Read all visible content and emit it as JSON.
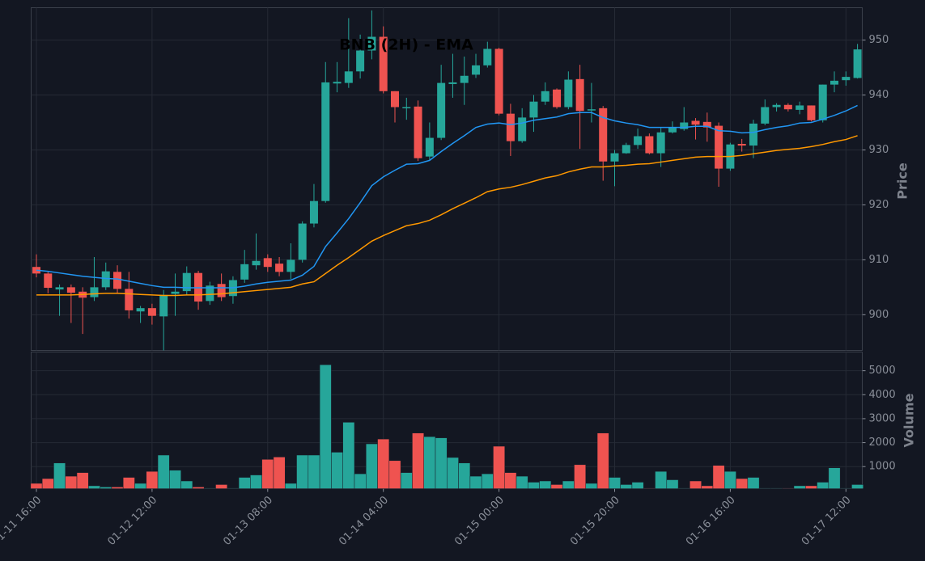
{
  "chart_data": {
    "type": "candlestick",
    "title": "BNB (2H) - EMA",
    "ylabel": "Price",
    "volume_label": "Volume",
    "up_color": "#26a69a",
    "down_color": "#ef5350",
    "grid": true,
    "categories": [
      "01-11 16:00",
      null,
      null,
      null,
      null,
      null,
      null,
      null,
      null,
      null,
      "01-12 12:00",
      null,
      null,
      null,
      null,
      null,
      null,
      null,
      null,
      null,
      "01-13 08:00",
      null,
      null,
      null,
      null,
      null,
      null,
      null,
      null,
      null,
      "01-14 04:00",
      null,
      null,
      null,
      null,
      null,
      null,
      null,
      null,
      null,
      "01-15 00:00",
      null,
      null,
      null,
      null,
      null,
      null,
      null,
      null,
      null,
      "01-15 20:00",
      null,
      null,
      null,
      null,
      null,
      null,
      null,
      null,
      null,
      "01-16 16:00",
      null,
      null,
      null,
      null,
      null,
      null,
      null,
      null,
      null,
      "01-17 12:00",
      null
    ],
    "open": [
      908.7,
      907.5,
      904.6,
      905.0,
      904.2,
      903.2,
      905.0,
      907.8,
      904.7,
      900.6,
      901.2,
      899.7,
      903.8,
      904.3,
      907.6,
      902.5,
      905.6,
      903.4,
      906.4,
      909.0,
      910.3,
      909.3,
      907.8,
      910.0,
      916.6,
      920.7,
      942.1,
      942.2,
      944.3,
      948.1,
      950.6,
      940.7,
      937.6,
      937.9,
      928.8,
      932.2,
      942.0,
      942.2,
      943.7,
      945.4,
      948.4,
      936.6,
      931.6,
      935.9,
      938.8,
      941.0,
      937.8,
      942.9,
      937.2,
      937.6,
      927.9,
      929.4,
      930.9,
      932.5,
      929.4,
      933.2,
      933.8,
      935.3,
      935.1,
      934.4,
      926.6,
      931.1,
      930.8,
      934.8,
      937.8,
      938.2,
      937.3,
      938.1,
      935.4,
      941.9,
      942.7,
      943.1
    ],
    "high": [
      911.0,
      907.8,
      905.5,
      905.5,
      905.0,
      910.5,
      909.5,
      909.0,
      907.8,
      901.6,
      902.0,
      904.5,
      907.5,
      908.8,
      908.0,
      906.0,
      907.5,
      907.0,
      911.8,
      914.8,
      911.0,
      910.5,
      913.0,
      917.0,
      923.8,
      946.0,
      946.0,
      954.0,
      951.0,
      955.4,
      952.5,
      940.7,
      939.5,
      939.0,
      935.0,
      945.5,
      947.5,
      947.0,
      947.5,
      949.7,
      948.6,
      938.4,
      937.6,
      940.0,
      942.3,
      941.2,
      944.3,
      945.5,
      942.2,
      938.0,
      930.0,
      931.3,
      933.9,
      933.0,
      934.0,
      935.2,
      937.8,
      935.8,
      936.8,
      935.0,
      931.3,
      932.0,
      935.5,
      939.2,
      938.5,
      938.5,
      938.8,
      938.1,
      941.9,
      944.3,
      944.3,
      949.3
    ],
    "low": [
      906.8,
      903.9,
      899.8,
      898.5,
      896.5,
      902.5,
      904.5,
      903.9,
      899.3,
      898.5,
      898.2,
      893.5,
      899.8,
      903.6,
      900.9,
      901.8,
      902.5,
      902.0,
      905.8,
      908.2,
      907.8,
      907.0,
      906.5,
      909.5,
      915.9,
      920.4,
      940.5,
      941.3,
      943.0,
      946.5,
      940.3,
      935.0,
      935.5,
      928.0,
      928.2,
      931.8,
      939.5,
      938.2,
      943.1,
      945.0,
      936.3,
      928.9,
      931.3,
      933.3,
      938.2,
      937.5,
      937.4,
      930.2,
      935.0,
      924.4,
      923.4,
      929.3,
      930.2,
      929.2,
      926.9,
      933.0,
      933.5,
      931.9,
      931.5,
      923.3,
      926.2,
      929.7,
      928.5,
      934.5,
      937.0,
      937.0,
      936.5,
      935.2,
      935.0,
      940.5,
      941.7,
      943.0
    ],
    "close": [
      907.5,
      904.9,
      905.0,
      904.0,
      903.1,
      905.0,
      907.9,
      904.7,
      900.8,
      901.2,
      899.8,
      903.6,
      904.2,
      907.6,
      902.4,
      905.3,
      903.2,
      906.3,
      909.2,
      909.8,
      908.7,
      907.8,
      910.0,
      916.6,
      920.7,
      942.3,
      942.4,
      944.3,
      948.1,
      950.6,
      940.7,
      937.8,
      937.8,
      928.5,
      932.2,
      942.2,
      942.3,
      943.5,
      945.4,
      948.4,
      936.6,
      931.6,
      935.9,
      938.8,
      940.7,
      937.8,
      942.8,
      937.1,
      937.4,
      927.9,
      929.4,
      930.9,
      932.5,
      929.4,
      933.2,
      934.1,
      935.0,
      934.6,
      934.1,
      926.6,
      931.0,
      930.8,
      934.8,
      937.8,
      938.2,
      937.4,
      938.1,
      935.4,
      941.9,
      942.6,
      943.3,
      948.3
    ],
    "volume": [
      300,
      500,
      1150,
      600,
      750,
      200,
      150,
      150,
      550,
      300,
      800,
      1480,
      850,
      400,
      150,
      100,
      250,
      100,
      550,
      650,
      1300,
      1400,
      300,
      1480,
      1480,
      5250,
      1600,
      2850,
      700,
      1950,
      2150,
      1250,
      750,
      2400,
      2250,
      2200,
      1380,
      1150,
      600,
      700,
      1850,
      750,
      600,
      350,
      400,
      250,
      400,
      1080,
      300,
      2400,
      550,
      250,
      350,
      100,
      800,
      450,
      100,
      400,
      200,
      1050,
      800,
      500,
      550,
      100,
      100,
      100,
      200,
      200,
      350,
      950,
      100,
      250
    ],
    "ema_lines": [
      {
        "color": "#2196f3",
        "values": [
          908.1,
          907.9,
          907.6,
          907.3,
          907.0,
          906.8,
          906.6,
          906.5,
          906.1,
          905.7,
          905.3,
          905.0,
          905.0,
          904.9,
          904.9,
          904.9,
          904.9,
          904.9,
          905.2,
          905.6,
          905.9,
          906.1,
          906.3,
          907.2,
          908.8,
          912.4,
          914.9,
          917.5,
          920.4,
          923.5,
          925.1,
          926.3,
          927.4,
          927.5,
          928.1,
          929.7,
          931.2,
          932.6,
          934.1,
          934.7,
          934.9,
          934.6,
          934.9,
          935.4,
          935.7,
          936.0,
          936.6,
          936.8,
          936.8,
          935.9,
          935.3,
          934.9,
          934.6,
          934.1,
          934.1,
          934.1,
          934.1,
          934.3,
          934.3,
          933.5,
          933.4,
          933.1,
          933.2,
          933.7,
          934.1,
          934.4,
          934.9,
          935.0,
          935.6,
          936.3,
          937.1,
          938.1
        ]
      },
      {
        "color": "#ff9800",
        "values": [
          903.6,
          903.6,
          903.6,
          903.6,
          903.7,
          903.8,
          903.9,
          903.9,
          903.8,
          903.7,
          903.6,
          903.5,
          903.5,
          903.6,
          903.6,
          903.7,
          903.8,
          904.0,
          904.2,
          904.4,
          904.6,
          904.8,
          905.0,
          905.6,
          906.0,
          907.5,
          909.0,
          910.4,
          911.9,
          913.4,
          914.4,
          915.3,
          916.2,
          916.6,
          917.2,
          918.2,
          919.3,
          920.3,
          921.3,
          922.4,
          922.9,
          923.2,
          923.7,
          924.3,
          924.9,
          925.3,
          926.0,
          926.5,
          926.9,
          926.9,
          927.1,
          927.2,
          927.4,
          927.5,
          927.8,
          928.1,
          928.4,
          928.7,
          928.8,
          928.8,
          928.8,
          929.0,
          929.3,
          929.6,
          929.9,
          930.1,
          930.3,
          930.6,
          931.0,
          931.5,
          931.9,
          932.6
        ]
      }
    ],
    "ylim": [
      893.5,
      955.9
    ],
    "yticks": [
      900,
      910,
      920,
      930,
      940,
      950
    ],
    "volume_ylim": [
      80,
      5780
    ],
    "volume_yticks": [
      1000,
      2000,
      3000,
      4000,
      5000
    ]
  }
}
